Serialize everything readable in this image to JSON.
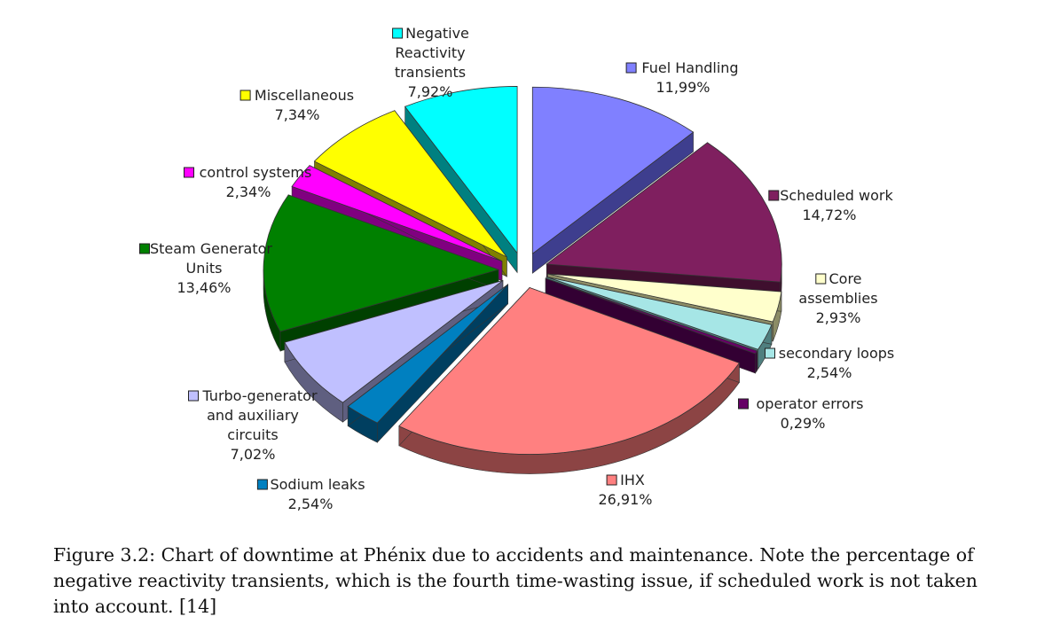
{
  "chart_data": {
    "type": "pie",
    "title": "",
    "slices": [
      {
        "label": "Fuel Handling",
        "value": 11.99,
        "display": "11,99%",
        "color": "#8080ff",
        "side": "#3e3e8e"
      },
      {
        "label": "Scheduled work",
        "value": 14.72,
        "display": "14,72%",
        "color": "#7f1f5f",
        "side": "#3f0f2e"
      },
      {
        "label": "Core assemblies",
        "value": 2.93,
        "display": "2,93%",
        "color": "#ffffcc",
        "side": "#8c8c66"
      },
      {
        "label": "secondary loops",
        "value": 2.54,
        "display": "2,54%",
        "color": "#a6e6e6",
        "side": "#4f7f7f"
      },
      {
        "label": "operator errors",
        "value": 0.29,
        "display": "0,29%",
        "color": "#660066",
        "side": "#330033"
      },
      {
        "label": "IHX",
        "value": 26.91,
        "display": "26,91%",
        "color": "#ff8080",
        "side": "#8c4444"
      },
      {
        "label": "Sodium leaks",
        "value": 2.54,
        "display": "2,54%",
        "color": "#0080c0",
        "side": "#003f60"
      },
      {
        "label": "Turbo-generator and auxiliary circuits",
        "value": 7.02,
        "display": "7,02%",
        "color": "#c0c0ff",
        "side": "#5f5f80"
      },
      {
        "label": "Steam Generator Units",
        "value": 13.46,
        "display": "13,46%",
        "color": "#008000",
        "side": "#004000"
      },
      {
        "label": "control systems",
        "value": 2.34,
        "display": "2,34%",
        "color": "#ff00ff",
        "side": "#800080"
      },
      {
        "label": "Miscellaneous",
        "value": 7.34,
        "display": "7,34%",
        "color": "#ffff00",
        "side": "#808000"
      },
      {
        "label": "Negative Reactivity transients",
        "value": 7.92,
        "display": "7,92%",
        "color": "#00ffff",
        "side": "#008080"
      }
    ],
    "legend": "labels beside slices",
    "exploded": true,
    "style": "3d"
  },
  "caption": "Figure 3.2: Chart of downtime at Phénix due to accidents and maintenance. Note the percentage of negative reactivity transients, which is the fourth time-wasting issue, if scheduled work is not taken into account. [14]"
}
